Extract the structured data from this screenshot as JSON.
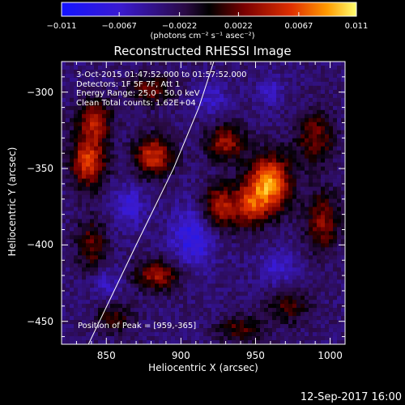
{
  "chart_data": {
    "type": "heatmap",
    "title": "Reconstructed RHESSI Image",
    "xlabel": "Heliocentric X (arcsec)",
    "ylabel": "Heliocentric Y (arcsec)",
    "xlim": [
      820,
      1010
    ],
    "ylim": [
      -465,
      -280
    ],
    "xticks": [
      "850",
      "900",
      "950",
      "1000"
    ],
    "xtick_values": [
      850,
      900,
      950,
      1000
    ],
    "yticks": [
      "-300",
      "-350",
      "-400",
      "-450"
    ],
    "ytick_values": [
      -300,
      -350,
      -400,
      -450
    ],
    "colorbar": {
      "min": -0.011,
      "max": 0.011,
      "ticks": [
        "-0.011",
        "-0.0067",
        "-0.0022",
        "0.0022",
        "0.0067",
        "0.011"
      ],
      "tick_values": [
        -0.011,
        -0.0067,
        -0.0022,
        0.0022,
        0.0067,
        0.011
      ],
      "units": "(photons cm⁻² s⁻¹ asec⁻²)"
    },
    "info_lines": [
      "3-Oct-2015 01:47:52.000 to 01:57:52.000",
      "Detectors: 1F 5F 7F, Att 1",
      "Energy Range: 25.0 - 50.0 keV",
      "Clean    Total counts: 1.62E+04"
    ],
    "peak_label": "Position of Peak = [959,-365]",
    "sources": [
      {
        "x": 959,
        "y": -360,
        "value": 0.011,
        "sx": 10,
        "sy": 13
      },
      {
        "x": 882,
        "y": -342,
        "value": 0.0078,
        "sx": 9,
        "sy": 9
      },
      {
        "x": 925,
        "y": -375,
        "value": 0.0065,
        "sx": 8,
        "sy": 10
      },
      {
        "x": 945,
        "y": -375,
        "value": 0.0058,
        "sx": 8,
        "sy": 10
      },
      {
        "x": 930,
        "y": -333,
        "value": 0.006,
        "sx": 9,
        "sy": 8
      },
      {
        "x": 838,
        "y": -345,
        "value": 0.0085,
        "sx": 8,
        "sy": 12
      },
      {
        "x": 842,
        "y": -318,
        "value": 0.0062,
        "sx": 8,
        "sy": 9
      },
      {
        "x": 880,
        "y": -298,
        "value": 0.0045,
        "sx": 10,
        "sy": 7
      },
      {
        "x": 990,
        "y": -330,
        "value": 0.0048,
        "sx": 9,
        "sy": 12
      },
      {
        "x": 995,
        "y": -385,
        "value": 0.005,
        "sx": 8,
        "sy": 14
      },
      {
        "x": 885,
        "y": -420,
        "value": 0.0058,
        "sx": 11,
        "sy": 7
      },
      {
        "x": 840,
        "y": -400,
        "value": 0.0042,
        "sx": 7,
        "sy": 12
      },
      {
        "x": 972,
        "y": -440,
        "value": 0.0035,
        "sx": 10,
        "sy": 8
      },
      {
        "x": 940,
        "y": -455,
        "value": 0.004,
        "sx": 10,
        "sy": 6
      },
      {
        "x": 855,
        "y": -448,
        "value": 0.0032,
        "sx": 9,
        "sy": 7
      },
      {
        "x": 908,
        "y": -395,
        "value": -0.006,
        "sx": 10,
        "sy": 14
      },
      {
        "x": 865,
        "y": -375,
        "value": -0.0045,
        "sx": 8,
        "sy": 10
      },
      {
        "x": 965,
        "y": -415,
        "value": -0.0045,
        "sx": 9,
        "sy": 8
      },
      {
        "x": 920,
        "y": -305,
        "value": -0.004,
        "sx": 8,
        "sy": 7
      },
      {
        "x": 960,
        "y": -300,
        "value": -0.0035,
        "sx": 7,
        "sy": 7
      },
      {
        "x": 850,
        "y": -425,
        "value": -0.0035,
        "sx": 7,
        "sy": 8
      }
    ],
    "limb_curve": [
      [
        838,
        -465
      ],
      [
        870,
        -400
      ],
      [
        895,
        -350
      ],
      [
        912,
        -310
      ],
      [
        922,
        -280
      ]
    ],
    "grid": false
  },
  "footer": {
    "timestamp": "12-Sep-2017 16:00"
  }
}
